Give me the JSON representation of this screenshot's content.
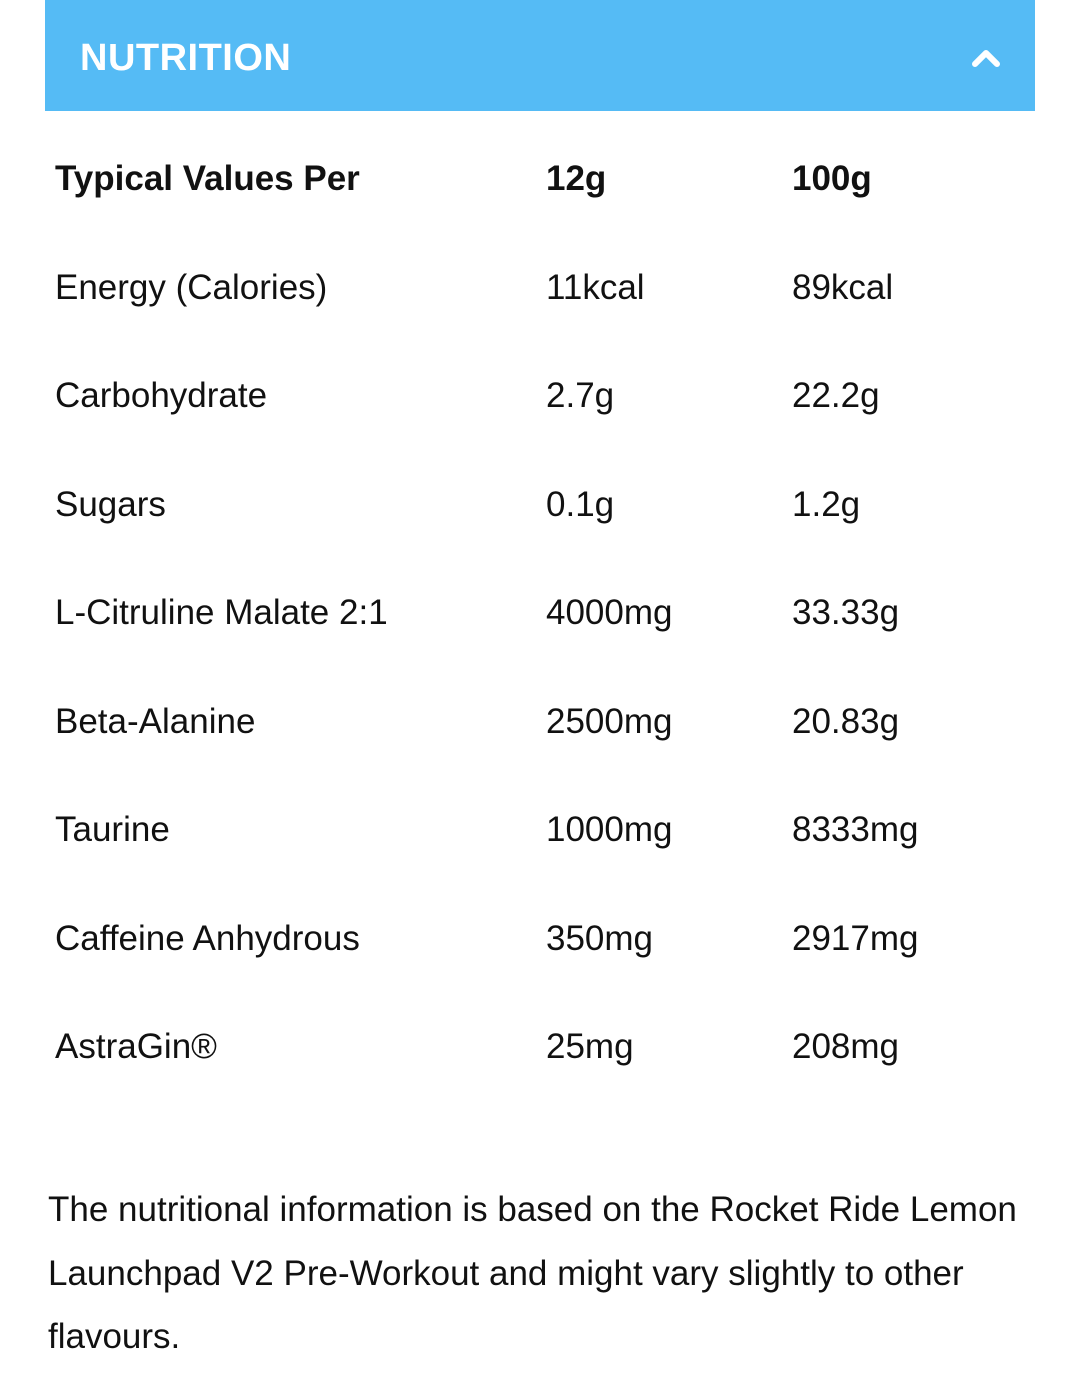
{
  "header": {
    "title": "NUTRITION"
  },
  "table": {
    "columns": [
      "Typical Values Per",
      "12g",
      "100g"
    ],
    "rows": [
      [
        "Energy (Calories)",
        "11kcal",
        "89kcal"
      ],
      [
        "Carbohydrate",
        "2.7g",
        "22.2g"
      ],
      [
        "Sugars",
        "0.1g",
        "1.2g"
      ],
      [
        "L-Citruline Malate 2:1",
        "4000mg",
        "33.33g"
      ],
      [
        "Beta-Alanine",
        "2500mg",
        "20.83g"
      ],
      [
        "Taurine",
        "1000mg",
        "8333mg"
      ],
      [
        "Caffeine Anhydrous",
        "350mg",
        "2917mg"
      ],
      [
        "AstraGin®",
        "25mg",
        "208mg"
      ]
    ]
  },
  "footnote": "The nutritional information is based on the Rocket Ride Lemon Launchpad V2 Pre-Workout and might vary slightly to other flavours."
}
